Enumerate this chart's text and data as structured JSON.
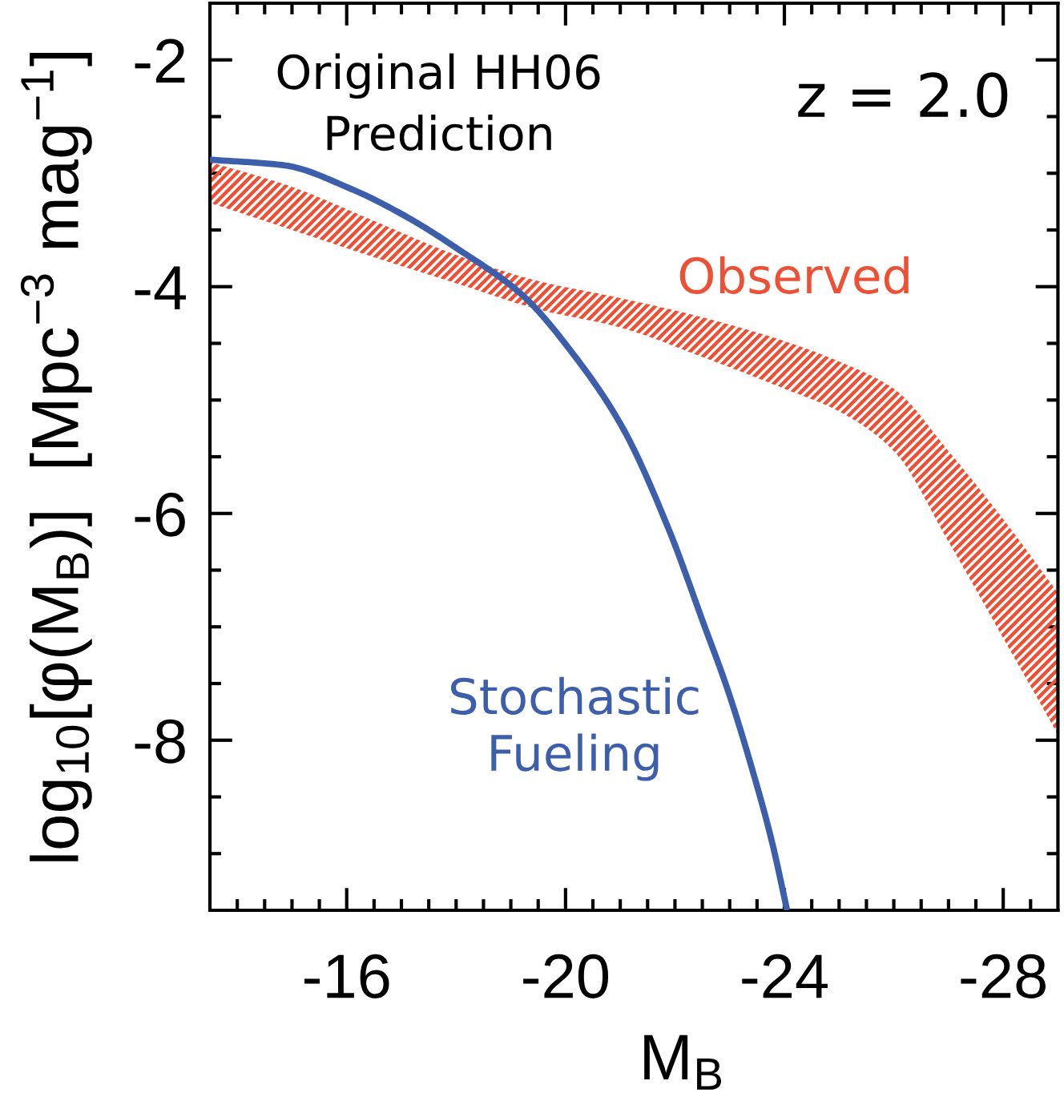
{
  "chart_data": {
    "type": "line",
    "xlabel": "M$_{B}$",
    "ylabel": "log$_{10}$[φ(M$_{B}$)]  [Mpc$^{−3}$ mag$^{−1}$]",
    "annotations": [
      "Original HH06\nPrediction",
      "z = 2.0"
    ],
    "xlim": [
      -13.5,
      -29
    ],
    "xticks": [
      {
        "value": -14,
        "label": null
      },
      {
        "value": -14.5,
        "label": null
      },
      {
        "value": -15,
        "label": null
      },
      {
        "value": -15.5,
        "label": null
      },
      -16,
      {
        "value": -16.5,
        "label": null
      },
      {
        "value": -17,
        "label": null
      },
      {
        "value": -17.5,
        "label": null
      },
      {
        "value": -18,
        "label": null
      },
      {
        "value": -18.5,
        "label": null
      },
      {
        "value": -19,
        "label": null
      },
      {
        "value": -19.5,
        "label": null
      },
      -20,
      {
        "value": -20.5,
        "label": null
      },
      {
        "value": -21,
        "label": null
      },
      {
        "value": -21.5,
        "label": null
      },
      {
        "value": -22,
        "label": null
      },
      {
        "value": -22.5,
        "label": null
      },
      {
        "value": -23,
        "label": null
      },
      {
        "value": -23.5,
        "label": null
      },
      -24,
      {
        "value": -24.5,
        "label": null
      },
      {
        "value": -25,
        "label": null
      },
      {
        "value": -25.5,
        "label": null
      },
      {
        "value": -26,
        "label": null
      },
      {
        "value": -26.5,
        "label": null
      },
      {
        "value": -27,
        "label": null
      },
      {
        "value": -27.5,
        "label": null
      },
      -28,
      {
        "value": -28.5,
        "label": null
      }
    ],
    "ylim": [
      -9.5,
      -1.5
    ],
    "yticks": [
      {
        "value": -9,
        "label": null
      },
      {
        "value": -8.5,
        "label": null
      },
      -8,
      {
        "value": -7.5,
        "label": null
      },
      {
        "value": -7,
        "label": null
      },
      {
        "value": -6.5,
        "label": null
      },
      -6,
      {
        "value": -5.5,
        "label": null
      },
      {
        "value": -5,
        "label": null
      },
      {
        "value": -4.5,
        "label": null
      },
      -4,
      {
        "value": -3.5,
        "label": null
      },
      {
        "value": -3,
        "label": null
      },
      {
        "value": -2.5,
        "label": null
      },
      -2
    ],
    "series": [
      {
        "name": "Stochastic\nFueling",
        "type": "line",
        "color": "#3d5fab",
        "x": [
          -13.5,
          -14.86,
          -16.09,
          -17.08,
          -18.07,
          -19.2,
          -20.18,
          -21.05,
          -21.87,
          -22.53,
          -22.96,
          -23.39,
          -23.77,
          -24.05
        ],
        "values": [
          -2.88,
          -2.93,
          -3.14,
          -3.38,
          -3.68,
          -4.07,
          -4.62,
          -5.25,
          -6.12,
          -6.98,
          -7.55,
          -8.22,
          -8.89,
          -9.5
        ]
      },
      {
        "name": "Observed",
        "color": "#ee5035",
        "x": [
          -13.5,
          -15,
          -16.5,
          -18,
          -19.5,
          -21,
          -22.5,
          -24,
          -25,
          -26,
          -27,
          -28,
          -29
        ],
        "values": [
          null,
          null,
          null,
          null,
          null,
          null,
          null,
          null,
          null,
          null,
          null,
          null,
          null
        ],
        "lower": [
          -3.26,
          -3.5,
          -3.74,
          -3.97,
          -4.2,
          -4.36,
          -4.62,
          -4.9,
          -5.1,
          -5.45,
          -6.25,
          -7.1,
          -7.95
        ],
        "upper": [
          -2.9,
          -3.12,
          -3.42,
          -3.72,
          -3.95,
          -4.1,
          -4.27,
          -4.48,
          -4.66,
          -4.9,
          -5.45,
          -6.05,
          -6.7
        ]
      }
    ]
  }
}
